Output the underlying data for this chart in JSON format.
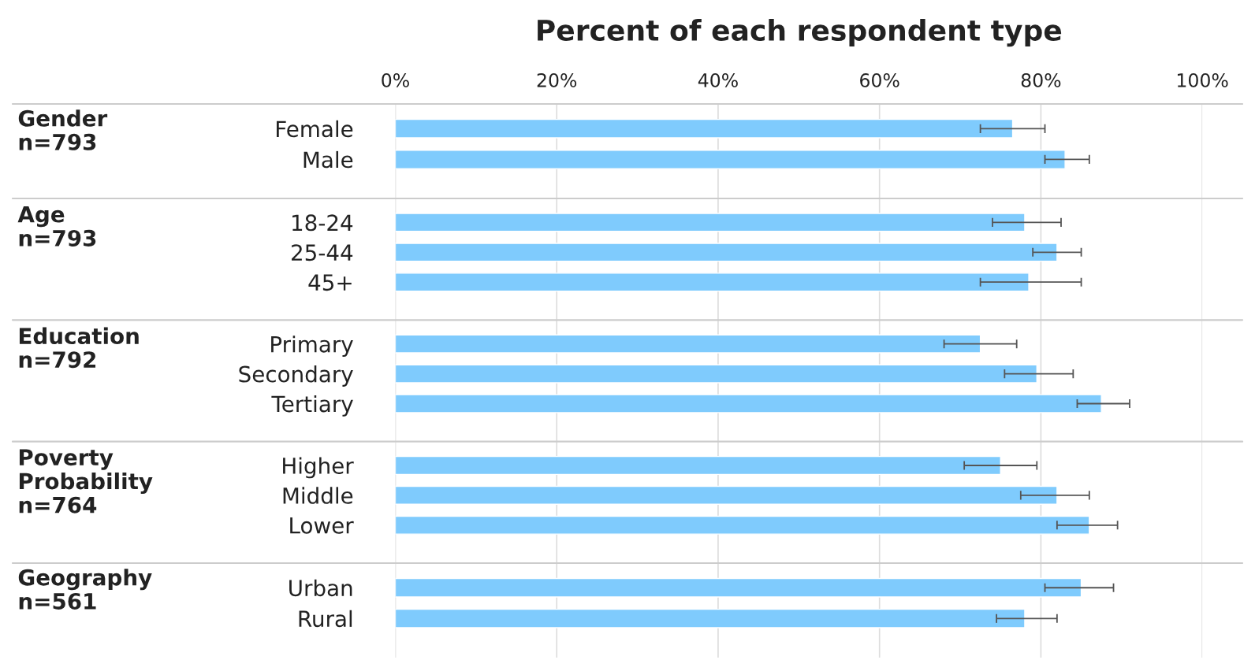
{
  "chart_data": [
    {
      "type": "bar",
      "orientation": "horizontal",
      "title": "Percent of each respondent type",
      "ylabel": "Gender\nn=793",
      "categories": [
        "Female",
        "Male"
      ],
      "values": [
        76.5,
        83
      ],
      "errors": [
        [
          72.5,
          80.5
        ],
        [
          80.5,
          86
        ]
      ],
      "color": "#7fcbfd",
      "xlim": [
        0,
        100
      ],
      "xticks": [
        {
          "value": 0,
          "label": "0%"
        },
        {
          "value": 20,
          "label": "20%"
        },
        {
          "value": 40,
          "label": "40%"
        },
        {
          "value": 60,
          "label": "60%"
        },
        {
          "value": 80,
          "label": "80%"
        },
        {
          "value": 100,
          "label": "100%"
        }
      ],
      "grid": "x"
    },
    {
      "type": "bar",
      "orientation": "horizontal",
      "ylabel": "Age\nn=793",
      "categories": [
        "18-24",
        "25-44",
        "45+"
      ],
      "values": [
        78,
        82,
        78.5
      ],
      "errors": [
        [
          74,
          82.5
        ],
        [
          79,
          85
        ],
        [
          72.5,
          85
        ]
      ],
      "color": "#7fcbfd",
      "xlim": [
        0,
        100
      ],
      "xticks": [
        0,
        20,
        40,
        60,
        80,
        100
      ],
      "tick_labels": "y",
      "grid": "x"
    },
    {
      "type": "bar",
      "orientation": "horizontal",
      "ylabel": "Education\nn=792",
      "categories": [
        "Primary",
        "Secondary",
        "Tertiary"
      ],
      "values": [
        72.5,
        79.5,
        87.5
      ],
      "errors": [
        [
          68,
          77
        ],
        [
          75.5,
          84
        ],
        [
          84.5,
          91
        ]
      ],
      "color": "#7fcbfd",
      "xlim": [
        0,
        100
      ],
      "xticks": [
        0,
        20,
        40,
        60,
        80,
        100
      ],
      "tick_labels": "y",
      "grid": "x"
    },
    {
      "type": "bar",
      "orientation": "horizontal",
      "ylabel": "Poverty\nProbability\nn=764",
      "categories": [
        "Higher",
        "Middle",
        "Lower"
      ],
      "values": [
        75,
        82,
        86
      ],
      "errors": [
        [
          70.5,
          79.5
        ],
        [
          77.5,
          86
        ],
        [
          82,
          89.5
        ]
      ],
      "color": "#7fcbfd",
      "xlim": [
        0,
        100
      ],
      "xticks": [
        0,
        20,
        40,
        60,
        80,
        100
      ],
      "tick_labels": "y",
      "grid": "x"
    },
    {
      "type": "bar",
      "orientation": "horizontal",
      "ylabel": "Geography\nn=561",
      "categories": [
        "Urban",
        "Rural"
      ],
      "values": [
        85,
        78
      ],
      "errors": [
        [
          80.5,
          89
        ],
        [
          74.5,
          82
        ]
      ],
      "color": "#7fcbfd",
      "xlim": [
        0,
        100
      ],
      "xticks": [
        0,
        20,
        40,
        60,
        80,
        100
      ],
      "tick_labels": "y",
      "grid": "x"
    }
  ]
}
